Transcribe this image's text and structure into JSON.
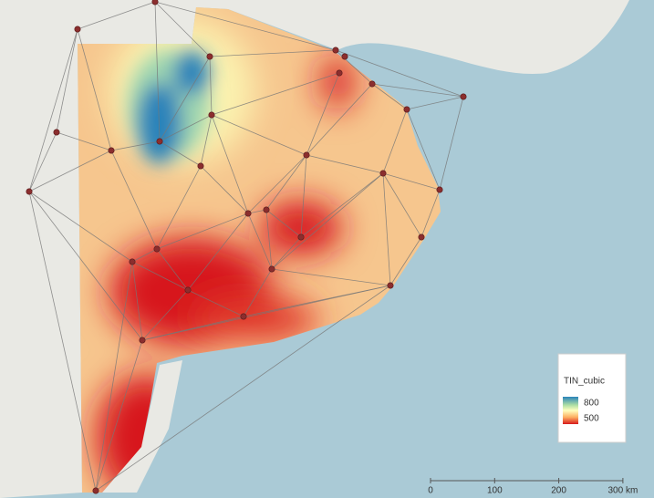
{
  "legend": {
    "title": "TIN_cubic",
    "max": 800,
    "min": 500
  },
  "scale_bar": {
    "ticks": [
      0,
      100,
      200,
      {
        "value": 300,
        "label": "300 km"
      }
    ]
  }
}
